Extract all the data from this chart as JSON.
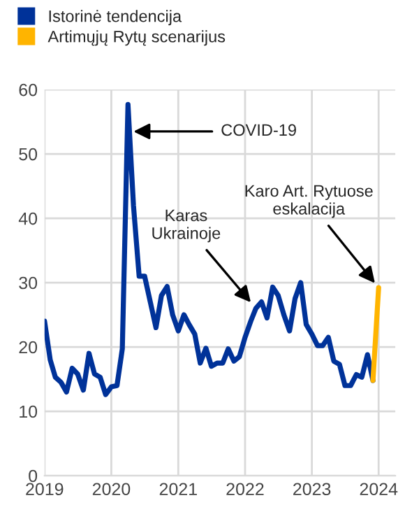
{
  "chart_data": {
    "type": "line",
    "legend": "top left",
    "grid": true,
    "marker": "none",
    "line_style": "solid",
    "ylim": [
      0,
      60
    ],
    "yticks": [
      0,
      10,
      20,
      30,
      40,
      50,
      60
    ],
    "xlim": [
      "2019-01",
      "2024-04"
    ],
    "xticks": [
      {
        "value": "2019-01",
        "label": "2019"
      },
      {
        "value": "2020-01",
        "label": "2020"
      },
      {
        "value": "2021-01",
        "label": "2021"
      },
      {
        "value": "2022-01",
        "label": "2022"
      },
      {
        "value": "2023-01",
        "label": "2023"
      },
      {
        "value": "2024-01",
        "label": "2024"
      }
    ],
    "series": [
      {
        "name": "Istorinė tendencija",
        "color": "#003299",
        "x": [
          "2019-01",
          "2019-02",
          "2019-03",
          "2019-04",
          "2019-05",
          "2019-06",
          "2019-07",
          "2019-08",
          "2019-09",
          "2019-10",
          "2019-11",
          "2019-12",
          "2020-01",
          "2020-02",
          "2020-03",
          "2020-04",
          "2020-05",
          "2020-06",
          "2020-07",
          "2020-08",
          "2020-09",
          "2020-10",
          "2020-11",
          "2020-12",
          "2021-01",
          "2021-02",
          "2021-03",
          "2021-04",
          "2021-05",
          "2021-06",
          "2021-07",
          "2021-08",
          "2021-09",
          "2021-10",
          "2021-11",
          "2021-12",
          "2022-01",
          "2022-02",
          "2022-03",
          "2022-04",
          "2022-05",
          "2022-06",
          "2022-07",
          "2022-08",
          "2022-09",
          "2022-10",
          "2022-11",
          "2022-12",
          "2023-01",
          "2023-02",
          "2023-03",
          "2023-04",
          "2023-05",
          "2023-06",
          "2023-07",
          "2023-08",
          "2023-09",
          "2023-10",
          "2023-11",
          "2023-12"
        ],
        "values": [
          24,
          18,
          15.3,
          14.5,
          13,
          16.7,
          15.8,
          13.3,
          19,
          15.8,
          15.3,
          12.6,
          13.8,
          14,
          19.7,
          57.7,
          42,
          31,
          31,
          27,
          23,
          28,
          29.4,
          25,
          22.5,
          25,
          23.5,
          22,
          17.5,
          19.8,
          17,
          17.5,
          17.5,
          19.7,
          17.8,
          18.5,
          21.5,
          24,
          26,
          27,
          24.5,
          29.3,
          28,
          25,
          22.5,
          27.5,
          30,
          23.5,
          22,
          20.2,
          20.2,
          21.5,
          17.8,
          17.3,
          14,
          14,
          15.7,
          15.3,
          18.8,
          14.8
        ]
      },
      {
        "name": "Artimųjų Rytų scenarijus",
        "color": "#ffb400",
        "x": [
          "2023-12",
          "2024-01"
        ],
        "values": [
          14.8,
          29.2
        ]
      }
    ],
    "annotations": [
      {
        "text": "COVID-19",
        "x": "2020-05",
        "y": 53.5
      },
      {
        "text": "Karas\nUkrainoje",
        "x": "2022-03",
        "y": 26
      },
      {
        "text": "Karo Art. Rytuose\neskalacija",
        "x": "2024-01",
        "y": 29.2
      }
    ]
  }
}
